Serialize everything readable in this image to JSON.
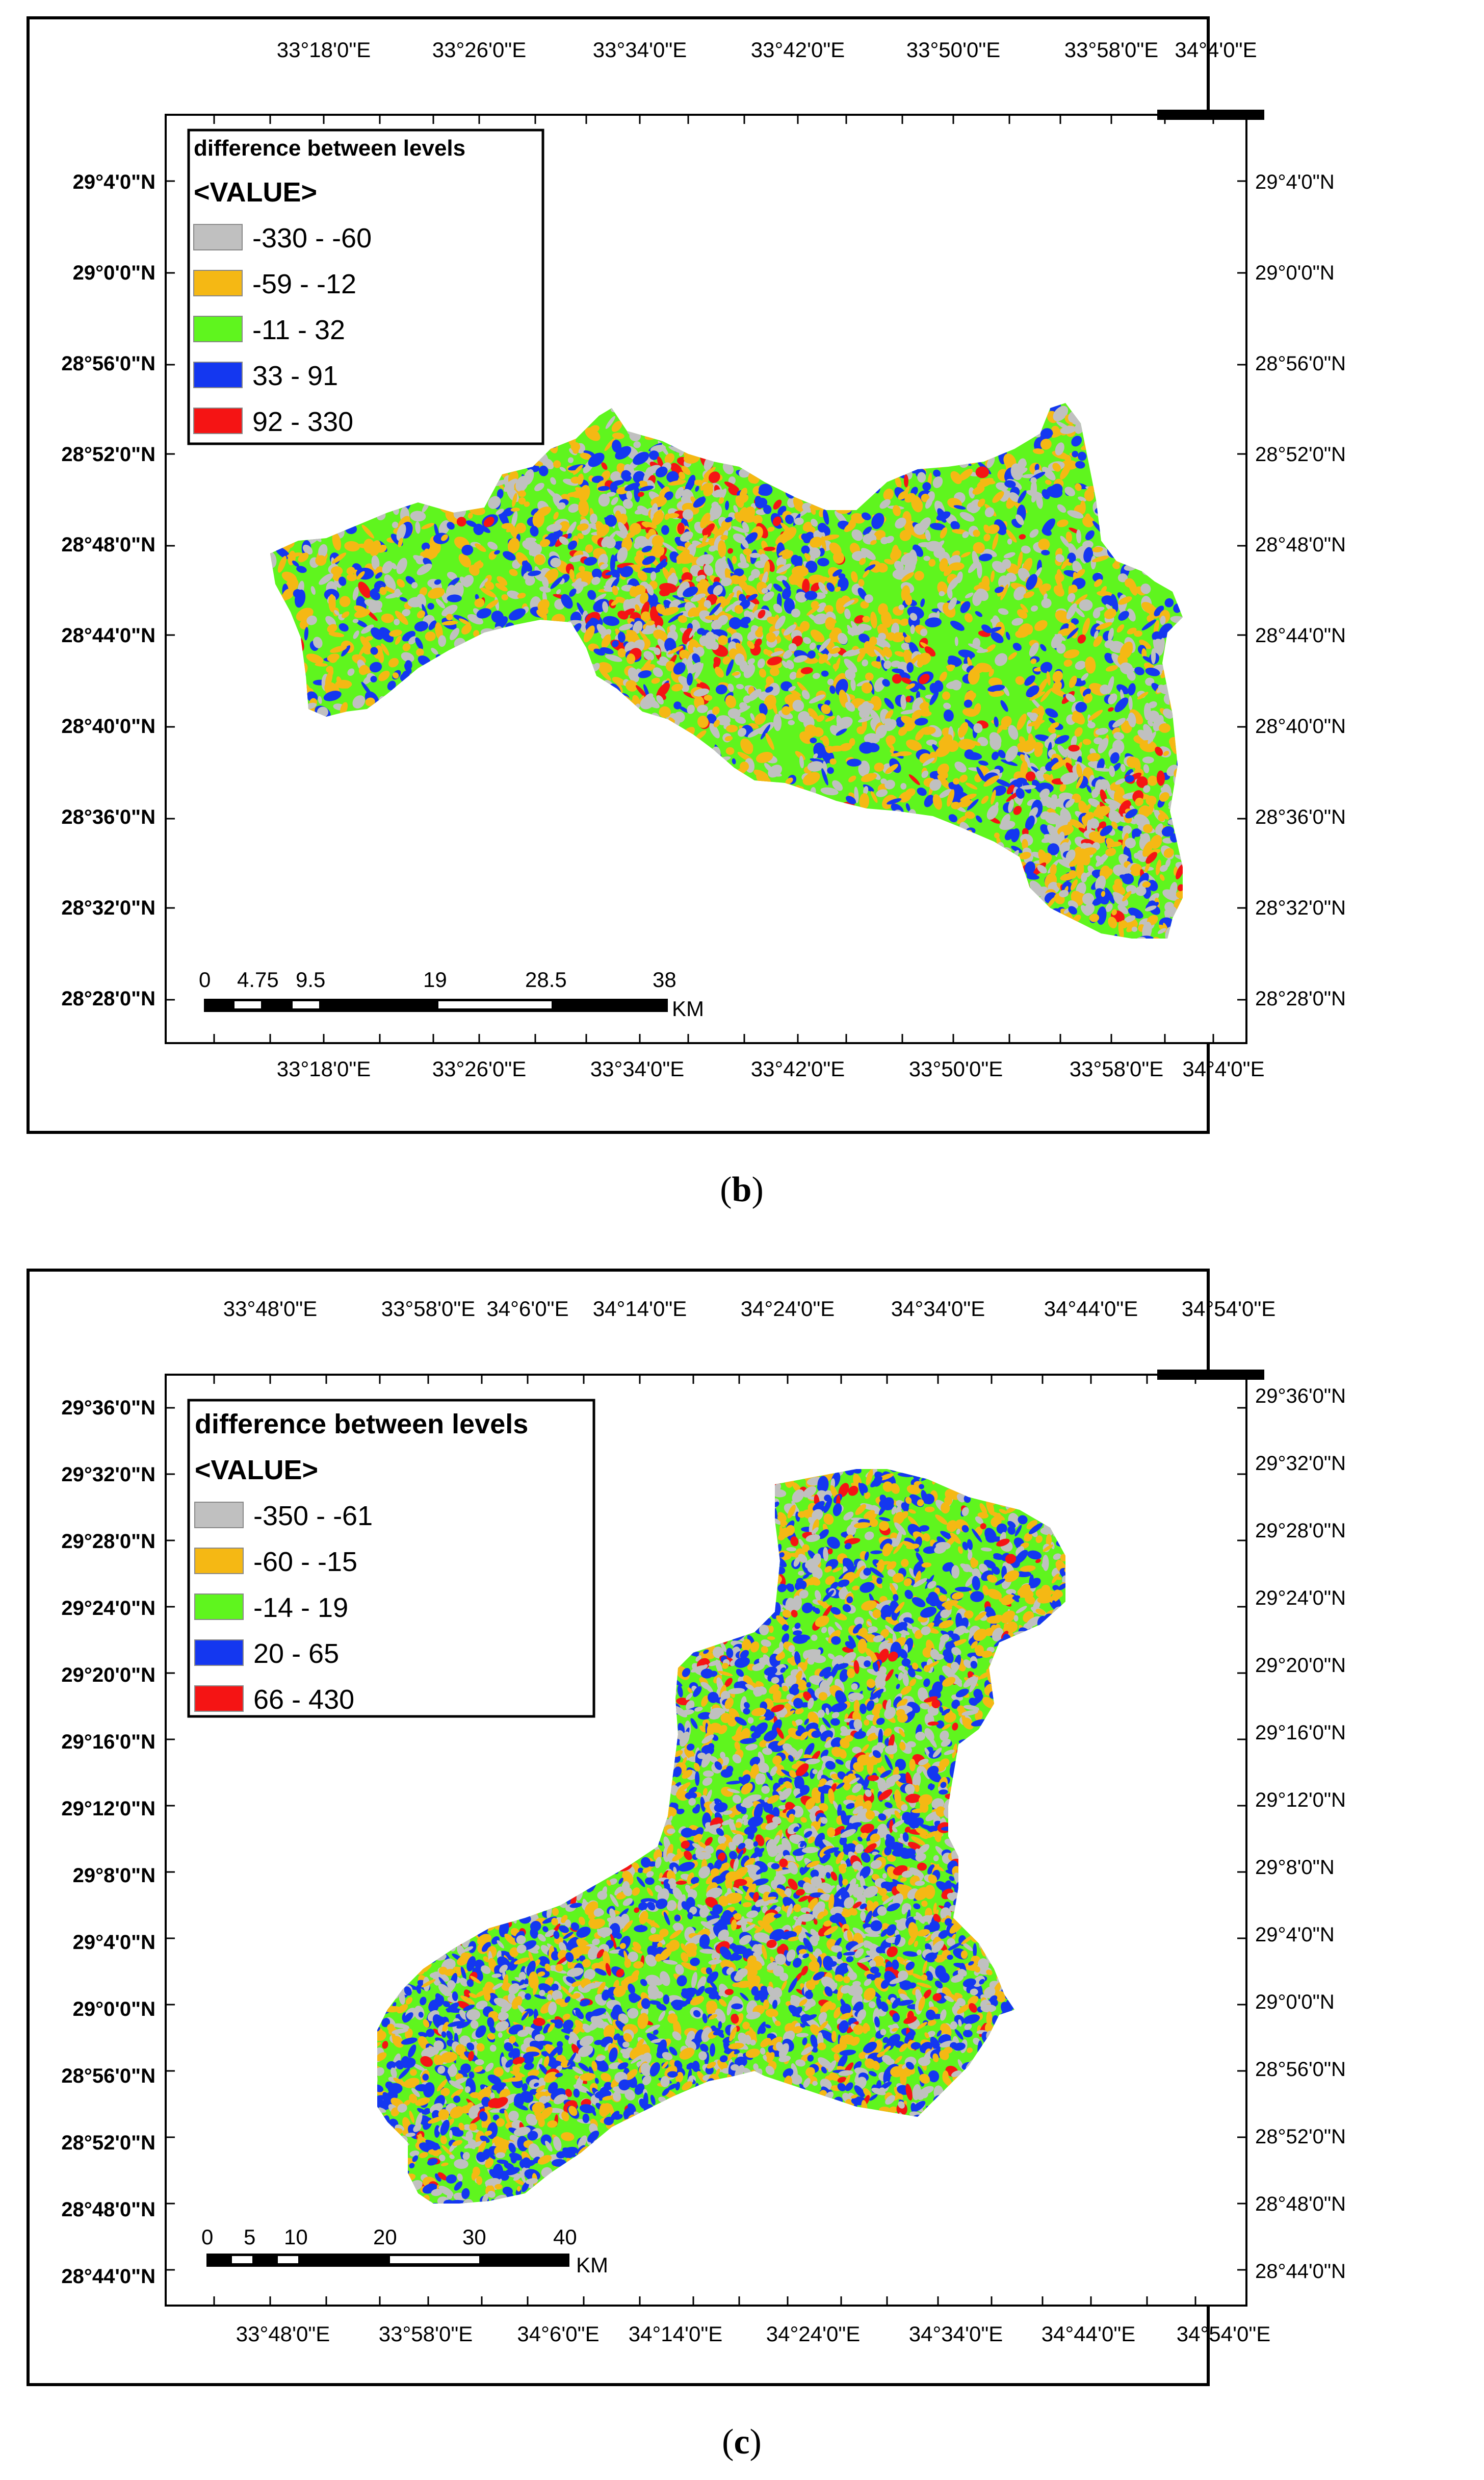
{
  "panels": [
    {
      "id": "b",
      "caption_letter": "b",
      "top_lon_labels": [
        "33°18'0\"E",
        "33°26'0\"E",
        "33°34'0\"E",
        "33°42'0\"E",
        "33°50'0\"E",
        "33°58'0\"E",
        "34°4'0\"E"
      ],
      "bottom_lon_labels": [
        "33°18'0\"E",
        "33°26'0\"E",
        "33°34'0\"E",
        "33°42'0\"E",
        "33°50'0\"E",
        "33°58'0\"E",
        "34°4'0\"E"
      ],
      "left_lat_labels": [
        "29°4'0\"N",
        "29°0'0\"N",
        "28°56'0\"N",
        "28°52'0\"N",
        "28°48'0\"N",
        "28°44'0\"N",
        "28°40'0\"N",
        "28°36'0\"N",
        "28°32'0\"N",
        "28°28'0\"N"
      ],
      "right_lat_labels": [
        "29°4'0\"N",
        "29°0'0\"N",
        "28°56'0\"N",
        "28°52'0\"N",
        "28°48'0\"N",
        "28°44'0\"N",
        "28°40'0\"N",
        "28°36'0\"N",
        "28°32'0\"N",
        "28°28'0\"N"
      ],
      "legend": {
        "title": "difference between levels",
        "subtitle": "<VALUE>",
        "classes": [
          {
            "label": "-330 - -60",
            "color": "#c0c0c0"
          },
          {
            "label": "-59 - -12",
            "color": "#f5b814"
          },
          {
            "label": "-11 - 32",
            "color": "#5ff51e"
          },
          {
            "label": "33 - 91",
            "color": "#1437f0"
          },
          {
            "label": "92 - 330",
            "color": "#f51414"
          }
        ]
      },
      "scalebar": {
        "ticks": [
          "0",
          "4.75",
          "9.5",
          "19",
          "28.5",
          "38"
        ],
        "unit": "KM"
      }
    },
    {
      "id": "c",
      "caption_letter": "c",
      "top_lon_labels": [
        "33°48'0\"E",
        "33°58'0\"E",
        "34°6'0\"E",
        "34°14'0\"E",
        "34°24'0\"E",
        "34°34'0\"E",
        "34°44'0\"E",
        "34°54'0\"E"
      ],
      "bottom_lon_labels": [
        "33°48'0\"E",
        "33°58'0\"E",
        "34°6'0\"E",
        "34°14'0\"E",
        "34°24'0\"E",
        "34°34'0\"E",
        "34°44'0\"E",
        "34°54'0\"E"
      ],
      "left_lat_labels": [
        "29°36'0\"N",
        "29°32'0\"N",
        "29°28'0\"N",
        "29°24'0\"N",
        "29°20'0\"N",
        "29°16'0\"N",
        "29°12'0\"N",
        "29°8'0\"N",
        "29°4'0\"N",
        "29°0'0\"N",
        "28°56'0\"N",
        "28°52'0\"N",
        "28°48'0\"N",
        "28°44'0\"N"
      ],
      "right_lat_labels": [
        "29°36'0\"N",
        "29°32'0\"N",
        "29°28'0\"N",
        "29°24'0\"N",
        "29°20'0\"N",
        "29°16'0\"N",
        "29°12'0\"N",
        "29°8'0\"N",
        "29°4'0\"N",
        "29°0'0\"N",
        "28°56'0\"N",
        "28°52'0\"N",
        "28°48'0\"N",
        "28°44'0\"N"
      ],
      "legend": {
        "title": "difference between levels",
        "subtitle": "<VALUE>",
        "classes": [
          {
            "label": "-350 - -61",
            "color": "#c0c0c0"
          },
          {
            "label": "-60 - -15",
            "color": "#f5b814"
          },
          {
            "label": "-14 - 19",
            "color": "#5ff51e"
          },
          {
            "label": "20 - 65",
            "color": "#1437f0"
          },
          {
            "label": "66 - 430",
            "color": "#f51414"
          }
        ]
      },
      "scalebar": {
        "ticks": [
          "0",
          "5",
          "10",
          "20",
          "30",
          "40"
        ],
        "unit": "KM"
      }
    }
  ]
}
